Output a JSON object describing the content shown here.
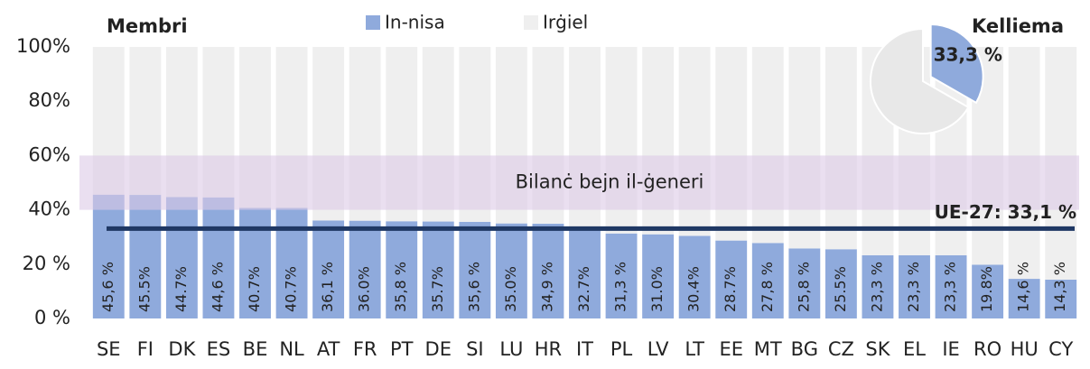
{
  "chart_data": {
    "type": "bar",
    "stacked": true,
    "title": "Membri",
    "categories": [
      "SE",
      "FI",
      "DK",
      "ES",
      "BE",
      "NL",
      "AT",
      "FR",
      "PT",
      "DE",
      "SI",
      "LU",
      "HR",
      "IT",
      "PL",
      "LV",
      "LT",
      "EE",
      "MT",
      "BG",
      "CZ",
      "SK",
      "EL",
      "IE",
      "RO",
      "HU",
      "CY"
    ],
    "series": [
      {
        "name": "In-nisa",
        "color": "#8faadc",
        "values": [
          45.6,
          45.5,
          44.7,
          44.6,
          40.7,
          40.7,
          36.1,
          36.0,
          35.8,
          35.7,
          35.6,
          35.0,
          34.9,
          32.7,
          31.3,
          31.0,
          30.4,
          28.7,
          27.8,
          25.8,
          25.5,
          23.3,
          23.3,
          23.3,
          19.8,
          14.6,
          14.3
        ],
        "value_labels": [
          "45,6 %",
          "45.5%",
          "44.7%",
          "44,6 %",
          "40.7%",
          "40.7%",
          "36,1 %",
          "36.0%",
          "35,8 %",
          "35.7%",
          "35,6 %",
          "35.0%",
          "34,9 %",
          "32.7%",
          "31,3 %",
          "31.0%",
          "30.4%",
          "28.7%",
          "27,8 %",
          "25,8 %",
          "25.5%",
          "23,3 %",
          "23,3 %",
          "23,3 %",
          "19.8%",
          "14,6 %",
          "14,3 %"
        ]
      },
      {
        "name": "Irġiel",
        "color": "#efefef",
        "values": [
          54.4,
          54.5,
          55.3,
          55.4,
          59.3,
          59.3,
          63.9,
          64.0,
          64.2,
          64.3,
          64.4,
          65.0,
          65.1,
          67.3,
          68.7,
          69.0,
          69.6,
          71.3,
          72.2,
          74.2,
          74.5,
          76.7,
          76.7,
          76.7,
          80.2,
          85.4,
          85.7
        ]
      }
    ],
    "ylim": [
      0,
      100
    ],
    "yticks": [
      {
        "value": 0,
        "label": "0 %"
      },
      {
        "value": 20,
        "label": "20 %"
      },
      {
        "value": 40,
        "label": "40%"
      },
      {
        "value": 60,
        "label": "60%"
      },
      {
        "value": 80,
        "label": "80%"
      },
      {
        "value": 100,
        "label": "100%"
      }
    ],
    "band": {
      "range": [
        40,
        60
      ],
      "label": "Bilanċ bejn il-ġeneri",
      "color": "#dcc9e6"
    },
    "reference_line": {
      "value": 33.1,
      "label": "UE-27: 33,1 %",
      "color": "#1f3864"
    },
    "legend": "top",
    "inset_pie": {
      "title": "Kelliema",
      "values": [
        33.3,
        66.7
      ],
      "value_labels": [
        "33,3 %",
        null
      ],
      "colors": [
        "#8faadc",
        "#e8e8e8"
      ]
    }
  }
}
